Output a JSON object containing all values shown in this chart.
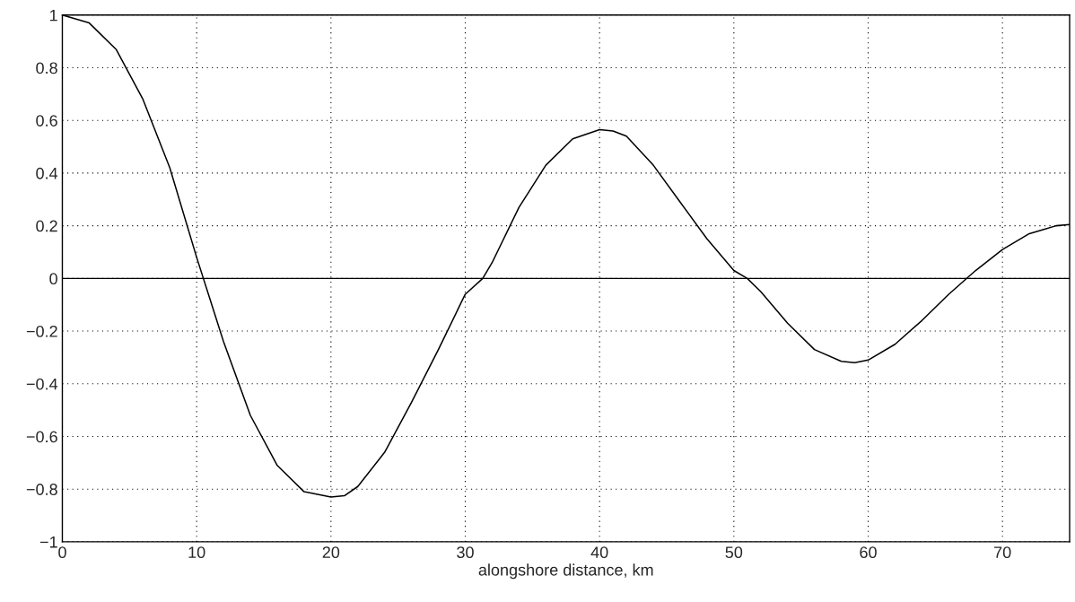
{
  "chart_data": {
    "type": "line",
    "xlabel": "alongshore distance, km",
    "x": [
      0,
      2,
      4,
      6,
      8,
      10,
      11,
      12,
      14,
      16,
      18,
      20,
      21,
      22,
      24,
      26,
      28,
      30,
      31.3,
      32,
      34,
      36,
      38,
      40,
      41,
      42,
      44,
      46,
      48,
      50,
      51,
      52,
      54,
      56,
      58,
      59,
      60,
      62,
      64,
      66,
      68,
      70,
      72,
      74,
      75
    ],
    "series": [
      {
        "color": "#000000",
        "values": [
          1.0,
          0.97,
          0.87,
          0.68,
          0.42,
          0.08,
          -0.08,
          -0.24,
          -0.52,
          -0.71,
          -0.81,
          -0.83,
          -0.825,
          -0.79,
          -0.66,
          -0.47,
          -0.27,
          -0.06,
          0.0,
          0.06,
          0.27,
          0.43,
          0.53,
          0.565,
          0.56,
          0.54,
          0.43,
          0.29,
          0.15,
          0.03,
          0.0,
          -0.05,
          -0.17,
          -0.27,
          -0.315,
          -0.32,
          -0.31,
          -0.25,
          -0.16,
          -0.06,
          0.03,
          0.11,
          0.17,
          0.2,
          0.205
        ]
      }
    ],
    "xlim": [
      0,
      75
    ],
    "xticks": [
      0,
      10,
      20,
      30,
      40,
      50,
      60,
      70
    ],
    "ylim": [
      -1,
      1
    ],
    "yticks": [
      {
        "value": -1,
        "label": "−1"
      },
      {
        "value": -0.8,
        "label": "−0.8"
      },
      {
        "value": -0.6,
        "label": "−0.6"
      },
      {
        "value": -0.4,
        "label": "−0.4"
      },
      {
        "value": -0.2,
        "label": "−0.2"
      },
      0,
      0.2,
      0.4,
      0.6,
      0.8,
      1
    ],
    "ref_lines": [
      {
        "axis": "y",
        "value": 0,
        "color": "#000000",
        "line_style": "solid"
      }
    ],
    "grid": true,
    "line_style": "solid",
    "marker": "none",
    "legend": false
  }
}
